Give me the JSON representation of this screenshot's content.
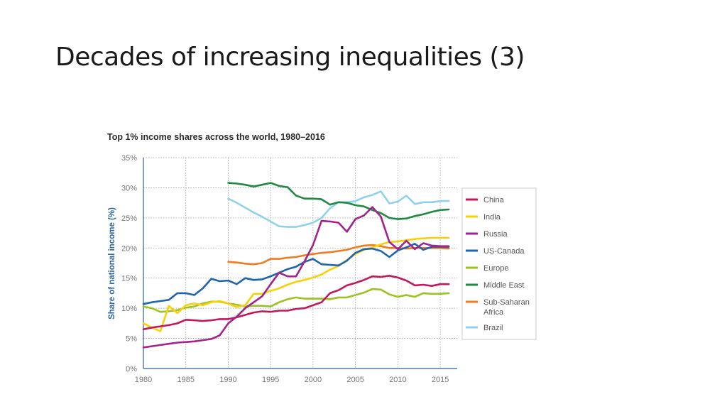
{
  "slide": {
    "title": "Decades of increasing inequalities (3)"
  },
  "chart_data": {
    "type": "line",
    "title": "Top 1% income shares across the world, 1980–2016",
    "ylabel": "Share of national income (%)",
    "xlim": [
      1980,
      2017
    ],
    "ylim": [
      0,
      35
    ],
    "xticks": [
      "1980",
      "1985",
      "1990",
      "1995",
      "2000",
      "2005",
      "2010",
      "2015"
    ],
    "yticks": [
      "0%",
      "5%",
      "10%",
      "15%",
      "20%",
      "25%",
      "30%",
      "35%"
    ],
    "grid": true,
    "legend_position": "right",
    "series": [
      {
        "name": "China",
        "color": "#c2185b",
        "x": [
          1980,
          1981,
          1982,
          1983,
          1984,
          1985,
          1986,
          1987,
          1988,
          1989,
          1990,
          1991,
          1992,
          1993,
          1994,
          1995,
          1996,
          1997,
          1998,
          1999,
          2000,
          2001,
          2002,
          2003,
          2004,
          2005,
          2006,
          2007,
          2008,
          2009,
          2010,
          2011,
          2012,
          2013,
          2014,
          2015,
          2016
        ],
        "y": [
          6.5,
          6.8,
          7.0,
          7.2,
          7.5,
          8.1,
          8.0,
          7.9,
          8.0,
          8.2,
          8.2,
          8.5,
          8.9,
          9.3,
          9.5,
          9.4,
          9.6,
          9.6,
          9.9,
          10.0,
          10.5,
          11.0,
          12.5,
          13.0,
          13.8,
          14.2,
          14.7,
          15.3,
          15.2,
          15.4,
          15.1,
          14.6,
          13.8,
          13.9,
          13.7,
          14.0,
          14.0
        ]
      },
      {
        "name": "India",
        "color": "#f5d10a",
        "x": [
          1980,
          1981,
          1982,
          1983,
          1984,
          1985,
          1986,
          1987,
          1988,
          1989,
          1990,
          1991,
          1992,
          1993,
          1994,
          1995,
          1996,
          1997,
          1998,
          1999,
          2000,
          2001,
          2002,
          2003,
          2004,
          2005,
          2006,
          2007,
          2008,
          2009,
          2010,
          2011,
          2012,
          2013,
          2014,
          2015,
          2016
        ],
        "y": [
          7.5,
          6.8,
          6.2,
          10.4,
          9.2,
          10.5,
          10.8,
          10.5,
          11.0,
          11.2,
          10.8,
          10.2,
          10.5,
          12.4,
          12.4,
          12.9,
          13.3,
          13.9,
          14.4,
          14.7,
          15.1,
          15.6,
          16.4,
          17.0,
          18.0,
          19.0,
          19.7,
          20.1,
          20.6,
          21.0,
          21.1,
          21.3,
          21.5,
          21.6,
          21.7,
          21.7,
          21.7
        ]
      },
      {
        "name": "Russia",
        "color": "#a2238b",
        "x": [
          1980,
          1981,
          1982,
          1983,
          1984,
          1985,
          1986,
          1987,
          1988,
          1989,
          1990,
          1991,
          1992,
          1993,
          1994,
          1995,
          1996,
          1997,
          1998,
          1999,
          2000,
          2001,
          2002,
          2003,
          2004,
          2005,
          2006,
          2007,
          2008,
          2009,
          2010,
          2011,
          2012,
          2013,
          2014,
          2015,
          2016
        ],
        "y": [
          3.5,
          3.7,
          3.9,
          4.1,
          4.3,
          4.4,
          4.5,
          4.7,
          4.9,
          5.5,
          7.5,
          8.6,
          10.0,
          11.0,
          12.0,
          14.0,
          15.9,
          15.3,
          15.3,
          17.8,
          20.5,
          24.5,
          24.4,
          24.2,
          22.7,
          24.8,
          25.4,
          26.8,
          25.2,
          21.0,
          19.8,
          21.2,
          19.8,
          20.8,
          20.4,
          20.3,
          20.3
        ]
      },
      {
        "name": "US-Canada",
        "color": "#1f65ad",
        "x": [
          1980,
          1981,
          1982,
          1983,
          1984,
          1985,
          1986,
          1987,
          1988,
          1989,
          1990,
          1991,
          1992,
          1993,
          1994,
          1995,
          1996,
          1997,
          1998,
          1999,
          2000,
          2001,
          2002,
          2003,
          2004,
          2005,
          2006,
          2007,
          2008,
          2009,
          2010,
          2011,
          2012,
          2013,
          2014,
          2015,
          2016
        ],
        "y": [
          10.7,
          11.0,
          11.2,
          11.4,
          12.5,
          12.5,
          12.2,
          13.3,
          14.9,
          14.5,
          14.6,
          14.0,
          15.0,
          14.7,
          14.8,
          15.3,
          15.9,
          16.5,
          16.9,
          17.7,
          18.2,
          17.3,
          17.2,
          17.1,
          17.9,
          19.2,
          19.8,
          19.9,
          19.5,
          18.5,
          19.6,
          20.1,
          20.7,
          19.7,
          20.2,
          20.2,
          20.2
        ]
      },
      {
        "name": "Europe",
        "color": "#9ac31f",
        "x": [
          1980,
          1981,
          1982,
          1983,
          1984,
          1985,
          1986,
          1987,
          1988,
          1989,
          1990,
          1991,
          1992,
          1993,
          1994,
          1995,
          1996,
          1997,
          1998,
          1999,
          2000,
          2001,
          2002,
          2003,
          2004,
          2005,
          2006,
          2007,
          2008,
          2009,
          2010,
          2011,
          2012,
          2013,
          2014,
          2015,
          2016
        ],
        "y": [
          10.3,
          10.0,
          9.4,
          9.5,
          9.7,
          10.1,
          10.3,
          10.8,
          11.1,
          11.1,
          10.8,
          10.6,
          10.3,
          10.4,
          10.4,
          10.3,
          11.0,
          11.5,
          11.8,
          11.6,
          11.6,
          11.6,
          11.5,
          11.8,
          11.8,
          12.2,
          12.6,
          13.2,
          13.1,
          12.3,
          11.9,
          12.2,
          11.9,
          12.5,
          12.4,
          12.4,
          12.5
        ]
      },
      {
        "name": "Middle East",
        "color": "#1f8a3f",
        "x": [
          1990,
          1991,
          1992,
          1993,
          1994,
          1995,
          1996,
          1997,
          1998,
          1999,
          2000,
          2001,
          2002,
          2003,
          2004,
          2005,
          2006,
          2007,
          2008,
          2009,
          2010,
          2011,
          2012,
          2013,
          2014,
          2015,
          2016
        ],
        "y": [
          30.8,
          30.7,
          30.5,
          30.2,
          30.5,
          30.8,
          30.3,
          30.1,
          28.7,
          28.2,
          28.2,
          28.1,
          27.2,
          27.6,
          27.5,
          27.1,
          26.9,
          26.3,
          25.8,
          25.0,
          24.8,
          24.9,
          25.3,
          25.6,
          26.0,
          26.3,
          26.4
        ]
      },
      {
        "name": "Sub-Saharan Africa",
        "color": "#ee7b22",
        "x": [
          1990,
          1991,
          1992,
          1993,
          1994,
          1995,
          1996,
          1997,
          1998,
          1999,
          2000,
          2001,
          2002,
          2003,
          2004,
          2005,
          2006,
          2007,
          2008,
          2009,
          2010,
          2011,
          2012,
          2013,
          2014,
          2015,
          2016
        ],
        "y": [
          17.7,
          17.6,
          17.4,
          17.3,
          17.5,
          18.2,
          18.2,
          18.4,
          18.5,
          18.8,
          19.0,
          19.2,
          19.3,
          19.5,
          19.7,
          20.1,
          20.4,
          20.5,
          20.3,
          20.0,
          20.0,
          19.9,
          20.0,
          20.0,
          20.0,
          20.0,
          19.9
        ]
      },
      {
        "name": "Brazil",
        "color": "#8fd2ea",
        "x": [
          1990,
          1991,
          1992,
          1993,
          1994,
          1995,
          1996,
          1997,
          1998,
          1999,
          2000,
          2001,
          2002,
          2003,
          2004,
          2005,
          2006,
          2007,
          2008,
          2009,
          2010,
          2011,
          2012,
          2013,
          2014,
          2015,
          2016
        ],
        "y": [
          28.2,
          27.5,
          26.7,
          25.9,
          25.2,
          24.4,
          23.6,
          23.5,
          23.5,
          23.8,
          24.2,
          25.0,
          26.6,
          27.6,
          27.6,
          27.8,
          28.4,
          28.8,
          29.4,
          27.4,
          27.7,
          28.7,
          27.3,
          27.6,
          27.6,
          27.8,
          27.8
        ]
      }
    ]
  }
}
